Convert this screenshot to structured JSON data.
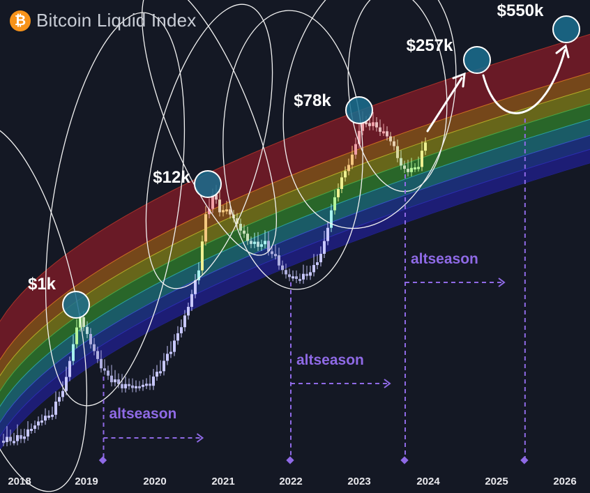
{
  "title": "Bitcoin Liquid Index",
  "logo_icon": "bitcoin-icon",
  "colors": {
    "background": "#141824",
    "annotation": "#8f6ae6",
    "circle_fill": "#1a6f8f",
    "bands": [
      "#6e1a27",
      "#7a4a1a",
      "#6c6a1a",
      "#2a6a2a",
      "#1a5f6a",
      "#1b2f7a",
      "#1e1e7a"
    ]
  },
  "chart_data": {
    "type": "candlestick",
    "x_ticks": [
      "2018",
      "2019",
      "2020",
      "2021",
      "2022",
      "2023",
      "2024",
      "2025",
      "2026"
    ],
    "y_scale": "log",
    "grid": false,
    "background": "rainbow log-regression bands",
    "series": [],
    "peaks": [
      {
        "label": "$1k",
        "date": "2018-10"
      },
      {
        "label": "$12k",
        "date": "2020-10"
      },
      {
        "label": "$78k",
        "date": "2023-02"
      },
      {
        "label": "$257k",
        "date": "2024-10"
      },
      {
        "label": "$550k",
        "date": "2026-01"
      }
    ],
    "altseason_markers": [
      {
        "label": "altseason",
        "date": "2019-03"
      },
      {
        "label": "altseason",
        "date": "2022-00"
      },
      {
        "label": "altseason",
        "date": "2023-08"
      }
    ],
    "projection_marker_date": "2025-05"
  }
}
